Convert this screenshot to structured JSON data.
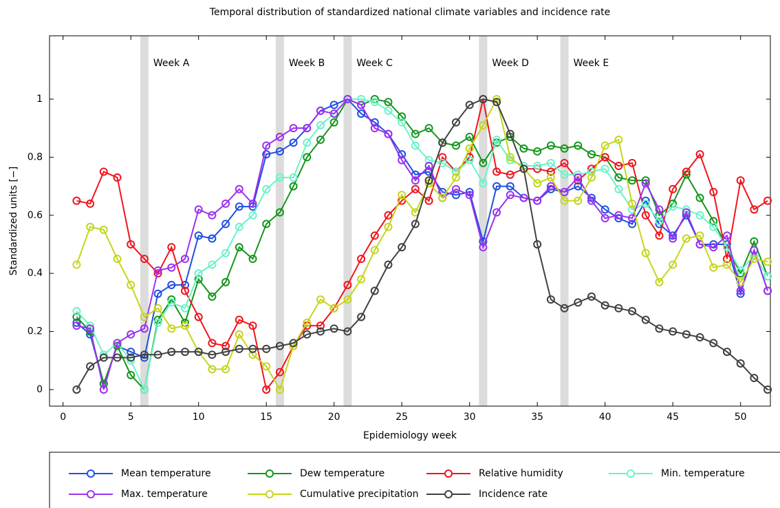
{
  "chart_data": {
    "type": "line",
    "title": "Temporal distribution of standardized national climate variables and incidence rate",
    "x_label": "Epidemiology week",
    "y_label": "Standardized units [−]",
    "xlim": [
      -1,
      52.2
    ],
    "ylim": [
      -0.057,
      1.218
    ],
    "xticks": [
      0,
      5,
      10,
      15,
      20,
      25,
      30,
      35,
      40,
      45,
      50
    ],
    "yticks": [
      0,
      0.2,
      0.4,
      0.6,
      0.8,
      1
    ],
    "grid": false,
    "highlights": [
      {
        "x": 6,
        "label": "Week A"
      },
      {
        "x": 16,
        "label": "Week B"
      },
      {
        "x": 21,
        "label": "Week C"
      },
      {
        "x": 31,
        "label": "Week D"
      },
      {
        "x": 37,
        "label": "Week E"
      }
    ],
    "x": [
      1,
      2,
      3,
      4,
      5,
      6,
      7,
      8,
      9,
      10,
      11,
      12,
      13,
      14,
      15,
      16,
      17,
      18,
      19,
      20,
      21,
      22,
      23,
      24,
      25,
      26,
      27,
      28,
      29,
      30,
      31,
      32,
      33,
      34,
      35,
      36,
      37,
      38,
      39,
      40,
      41,
      42,
      43,
      44,
      45,
      46,
      47,
      48,
      49,
      50,
      51,
      52
    ],
    "series": [
      {
        "name": "Mean temperature",
        "color": "#1f4fe0",
        "values": [
          0.23,
          0.19,
          0.02,
          0.15,
          0.13,
          0.11,
          0.33,
          0.36,
          0.36,
          0.53,
          0.52,
          0.57,
          0.63,
          0.63,
          0.81,
          0.82,
          0.85,
          0.9,
          0.96,
          0.98,
          1.0,
          0.95,
          0.92,
          0.88,
          0.81,
          0.74,
          0.75,
          0.68,
          0.67,
          0.68,
          0.51,
          0.7,
          0.7,
          0.66,
          0.65,
          0.69,
          0.68,
          0.7,
          0.66,
          0.62,
          0.59,
          0.57,
          0.65,
          0.57,
          0.53,
          0.6,
          0.5,
          0.5,
          0.5,
          0.33,
          0.48,
          0.34
        ]
      },
      {
        "name": "Dew temperature",
        "color": "#13961a",
        "values": [
          0.25,
          0.2,
          0.02,
          0.15,
          0.05,
          0.0,
          0.24,
          0.31,
          0.23,
          0.38,
          0.32,
          0.37,
          0.49,
          0.45,
          0.57,
          0.61,
          0.7,
          0.8,
          0.86,
          0.92,
          1.0,
          0.98,
          1.0,
          0.99,
          0.94,
          0.88,
          0.9,
          0.85,
          0.84,
          0.87,
          0.78,
          0.85,
          0.87,
          0.83,
          0.82,
          0.84,
          0.83,
          0.84,
          0.81,
          0.8,
          0.73,
          0.72,
          0.72,
          0.6,
          0.64,
          0.74,
          0.66,
          0.58,
          0.49,
          0.4,
          0.51,
          0.39
        ]
      },
      {
        "name": "Relative humidity",
        "color": "#f0141c",
        "values": [
          0.65,
          0.64,
          0.75,
          0.73,
          0.5,
          0.45,
          0.4,
          0.49,
          0.34,
          0.25,
          0.16,
          0.15,
          0.24,
          0.22,
          0.0,
          0.06,
          0.15,
          0.22,
          0.22,
          0.28,
          0.36,
          0.45,
          0.53,
          0.6,
          0.65,
          0.69,
          0.65,
          0.8,
          0.75,
          0.8,
          1.0,
          0.75,
          0.74,
          0.76,
          0.76,
          0.75,
          0.78,
          0.72,
          0.76,
          0.8,
          0.77,
          0.78,
          0.6,
          0.53,
          0.69,
          0.75,
          0.81,
          0.68,
          0.45,
          0.72,
          0.62,
          0.65
        ]
      },
      {
        "name": "Min. temperature",
        "color": "#6cf2c8",
        "values": [
          0.27,
          0.22,
          0.12,
          0.16,
          0.1,
          0.0,
          0.23,
          0.3,
          0.28,
          0.4,
          0.43,
          0.47,
          0.56,
          0.6,
          0.69,
          0.73,
          0.73,
          0.85,
          0.91,
          0.95,
          1.0,
          1.0,
          0.99,
          0.96,
          0.92,
          0.84,
          0.79,
          0.78,
          0.75,
          0.79,
          0.71,
          0.86,
          0.79,
          0.77,
          0.77,
          0.78,
          0.74,
          0.74,
          0.75,
          0.76,
          0.69,
          0.62,
          0.64,
          0.58,
          0.63,
          0.62,
          0.6,
          0.56,
          0.49,
          0.41,
          0.46,
          0.39
        ]
      },
      {
        "name": "Max. temperature",
        "color": "#9b30f0",
        "values": [
          0.22,
          0.21,
          0.0,
          0.16,
          0.19,
          0.21,
          0.41,
          0.42,
          0.45,
          0.62,
          0.6,
          0.64,
          0.69,
          0.64,
          0.84,
          0.87,
          0.9,
          0.9,
          0.96,
          0.95,
          1.0,
          0.98,
          0.9,
          0.88,
          0.79,
          0.72,
          0.77,
          0.66,
          0.69,
          0.67,
          0.49,
          0.61,
          0.67,
          0.66,
          0.65,
          0.7,
          0.68,
          0.73,
          0.65,
          0.59,
          0.6,
          0.59,
          0.71,
          0.62,
          0.52,
          0.61,
          0.5,
          0.49,
          0.53,
          0.34,
          0.48,
          0.34
        ]
      },
      {
        "name": "Cumulative precipitation",
        "color": "#c5d51c",
        "values": [
          0.43,
          0.56,
          0.55,
          0.45,
          0.36,
          0.25,
          0.28,
          0.21,
          0.22,
          0.13,
          0.07,
          0.07,
          0.19,
          0.12,
          0.08,
          0.0,
          0.15,
          0.23,
          0.31,
          0.28,
          0.31,
          0.38,
          0.48,
          0.56,
          0.67,
          0.61,
          0.71,
          0.66,
          0.73,
          0.83,
          0.91,
          1.0,
          0.8,
          0.76,
          0.71,
          0.73,
          0.65,
          0.65,
          0.73,
          0.84,
          0.86,
          0.64,
          0.47,
          0.37,
          0.43,
          0.52,
          0.53,
          0.42,
          0.43,
          0.37,
          0.45,
          0.44
        ]
      },
      {
        "name": "Incidence rate",
        "color": "#404040",
        "values": [
          0.0,
          0.08,
          0.11,
          0.11,
          0.11,
          0.12,
          0.12,
          0.13,
          0.13,
          0.13,
          0.12,
          0.13,
          0.14,
          0.14,
          0.14,
          0.15,
          0.16,
          0.19,
          0.2,
          0.21,
          0.2,
          0.25,
          0.34,
          0.43,
          0.49,
          0.57,
          0.72,
          0.85,
          0.92,
          0.98,
          1.0,
          0.99,
          0.88,
          0.76,
          0.5,
          0.31,
          0.28,
          0.3,
          0.32,
          0.29,
          0.28,
          0.27,
          0.24,
          0.21,
          0.2,
          0.19,
          0.18,
          0.16,
          0.13,
          0.09,
          0.04,
          0.0
        ]
      }
    ]
  }
}
